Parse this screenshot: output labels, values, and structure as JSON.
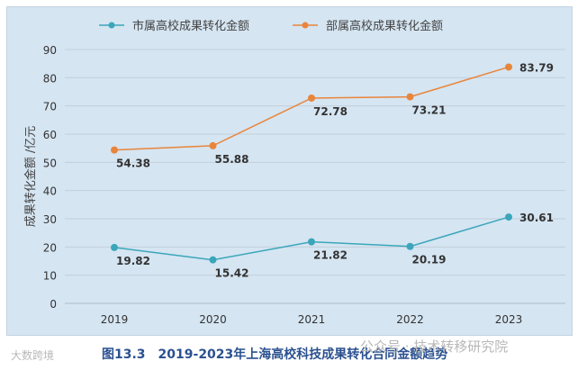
{
  "chart_data": {
    "type": "line",
    "title": "",
    "categories": [
      "2019",
      "2020",
      "2021",
      "2022",
      "2023"
    ],
    "series": [
      {
        "name": "市属高校成果转化金额",
        "color": "#3ba6b9",
        "values": [
          19.82,
          15.42,
          21.82,
          20.19,
          30.61
        ],
        "labels": [
          "19.82",
          "15.42",
          "21.82",
          "20.19",
          "30.61"
        ]
      },
      {
        "name": "部属高校成果转化金额",
        "color": "#e9853b",
        "values": [
          54.38,
          55.88,
          72.78,
          73.21,
          83.79
        ],
        "labels": [
          "54.38",
          "55.88",
          "72.78",
          "73.21",
          "83.79"
        ]
      }
    ],
    "xlabel": "",
    "ylabel": "成果转化金额 /亿元",
    "ylim": [
      0,
      90
    ],
    "yticks": [
      "0",
      "10",
      "20",
      "30",
      "40",
      "50",
      "60",
      "70",
      "80",
      "90"
    ],
    "grid": true,
    "legend": "top"
  },
  "caption": "图13.3　2019-2023年上海高校科技成果转化合同金额趋势",
  "watermark_left": "大数跨境",
  "watermark_right": "公众号 · 技术转移研究院"
}
